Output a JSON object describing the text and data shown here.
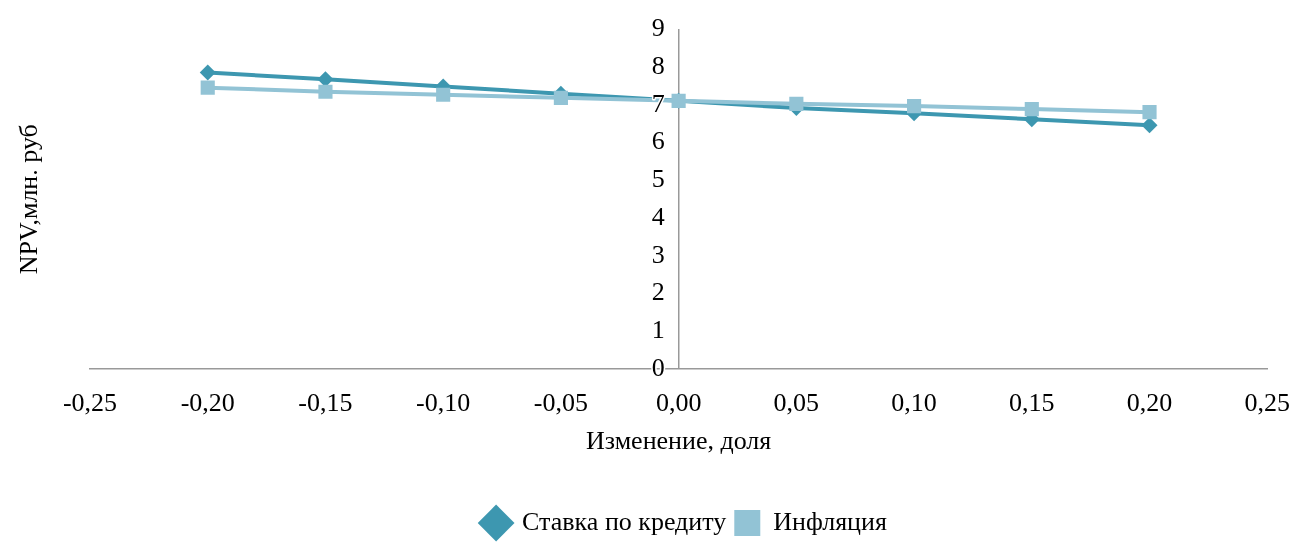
{
  "chart_data": {
    "type": "line",
    "xlabel": "Изменение, доля",
    "ylabel": "NPV,млн. руб",
    "x": [
      -0.2,
      -0.15,
      -0.1,
      -0.05,
      0,
      0.05,
      0.1,
      0.15,
      0.2
    ],
    "series": [
      {
        "name": "Ставка по кредиту",
        "color": "#3d97b0",
        "marker": "diamond",
        "values": [
          7.86,
          7.68,
          7.49,
          7.3,
          7.11,
          6.92,
          6.78,
          6.62,
          6.46
        ]
      },
      {
        "name": "Инфляция",
        "color": "#92c3d5",
        "marker": "square",
        "values": [
          7.46,
          7.35,
          7.27,
          7.19,
          7.11,
          7.03,
          6.97,
          6.89,
          6.81
        ]
      }
    ],
    "xlim": [
      -0.25,
      0.25
    ],
    "xticks": [
      {
        "value": -0.25,
        "label": "-0,25"
      },
      {
        "value": -0.2,
        "label": "-0,20"
      },
      {
        "value": -0.15,
        "label": "-0,15"
      },
      {
        "value": -0.1,
        "label": "-0,10"
      },
      {
        "value": -0.05,
        "label": "-0,05"
      },
      {
        "value": 0,
        "label": "0,00"
      },
      {
        "value": 0.05,
        "label": "0,05"
      },
      {
        "value": 0.1,
        "label": "0,10"
      },
      {
        "value": 0.15,
        "label": "0,15"
      },
      {
        "value": 0.2,
        "label": "0,20"
      },
      {
        "value": 0.25,
        "label": "0,25"
      }
    ],
    "ylim": [
      0,
      9
    ],
    "yticks": [
      0,
      1,
      2,
      3,
      4,
      5,
      6,
      7,
      8,
      9
    ],
    "grid": false,
    "legend": "bottom"
  }
}
